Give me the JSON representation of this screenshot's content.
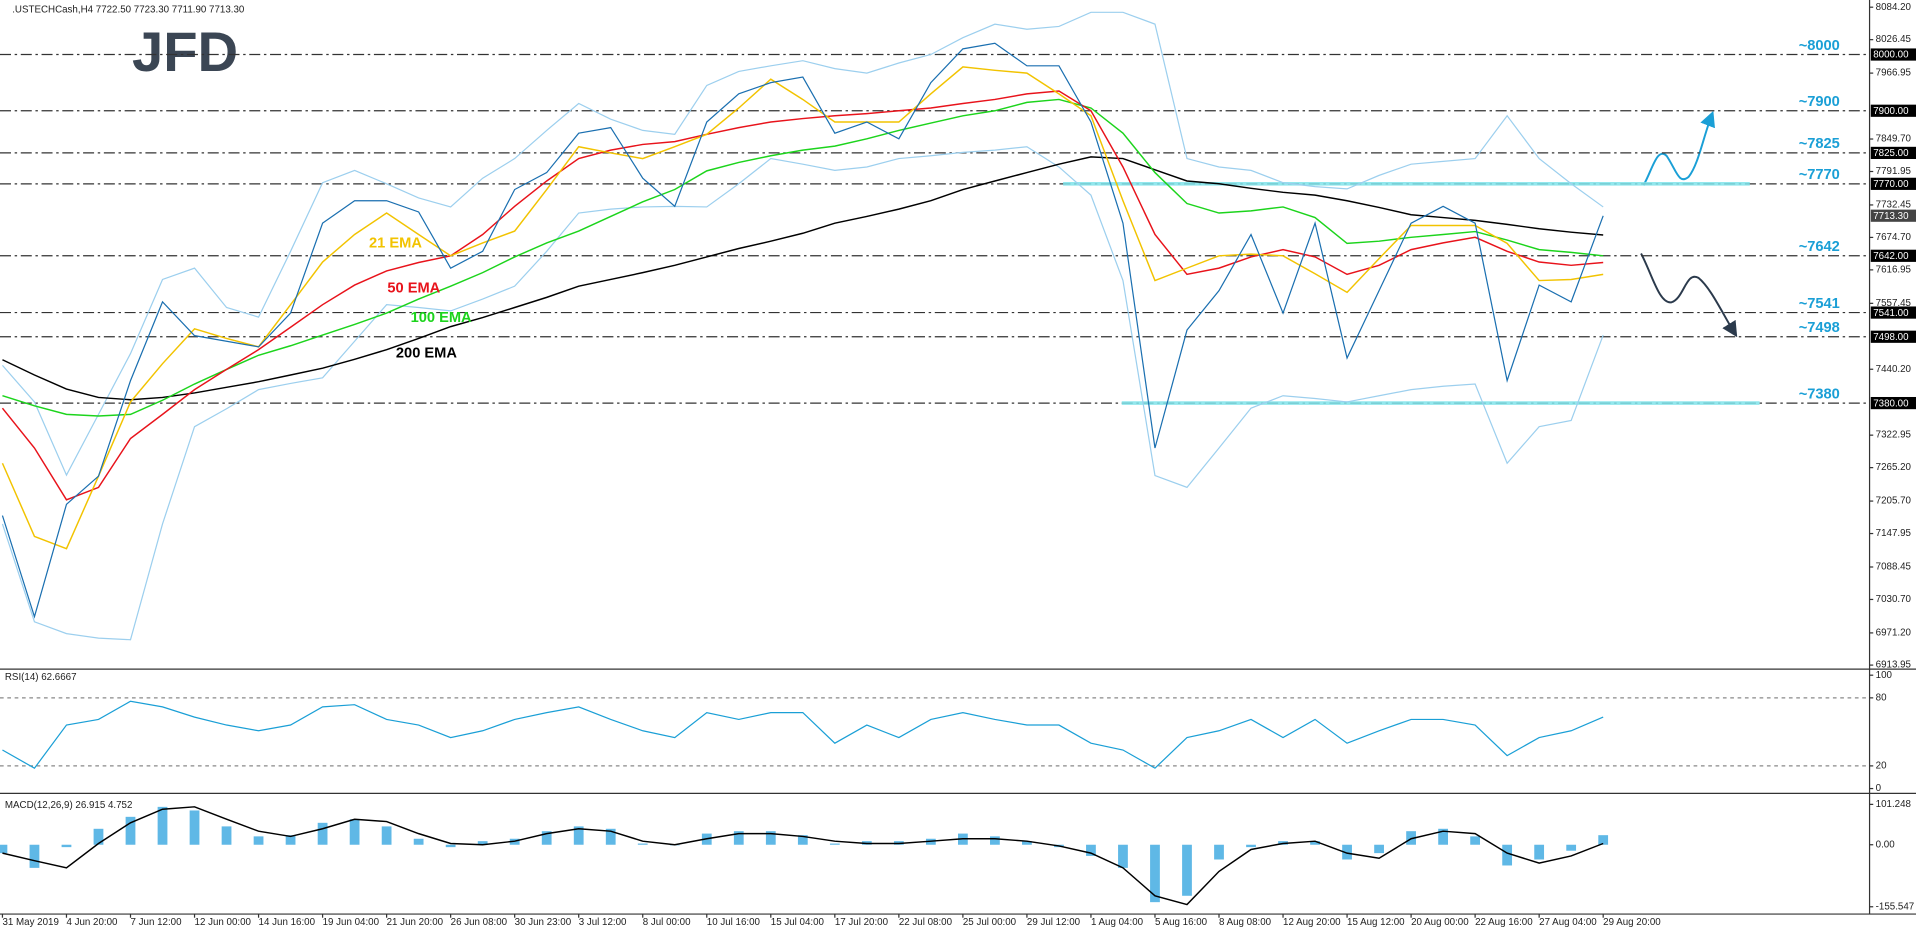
{
  "logo": "JFD",
  "chart_data": [
    {
      "type": "line",
      "title": ".USTECHCash,H4  7722.50 7723.30 7711.90 7713.30",
      "ylim": [
        6909,
        8097
      ],
      "yticks": [
        {
          "value": 8084.2,
          "label": "8084.20"
        },
        {
          "value": 8026.45,
          "label": "8026.45"
        },
        {
          "value": 7966.95,
          "label": "7966.95"
        },
        {
          "value": 7849.7,
          "label": "7849.70"
        },
        {
          "value": 7791.95,
          "label": "7791.95"
        },
        {
          "value": 7732.45,
          "label": "7732.45"
        },
        {
          "value": 7674.7,
          "label": "7674.70"
        },
        {
          "value": 7616.95,
          "label": "7616.95"
        },
        {
          "value": 7557.45,
          "label": "7557.45"
        },
        {
          "value": 7440.2,
          "label": "7440.20"
        },
        {
          "value": 7322.95,
          "label": "7322.95"
        },
        {
          "value": 7265.2,
          "label": "7265.20"
        },
        {
          "value": 7205.7,
          "label": "7205.70"
        },
        {
          "value": 7147.95,
          "label": "7147.95"
        },
        {
          "value": 7088.45,
          "label": "7088.45"
        },
        {
          "value": 7030.7,
          "label": "7030.70"
        },
        {
          "value": 6971.2,
          "label": "6971.20"
        },
        {
          "value": 6913.95,
          "label": "6913.95"
        }
      ],
      "levels": [
        {
          "value": 8000,
          "label": "~8000",
          "axis_label": "8000.00"
        },
        {
          "value": 7900,
          "label": "~7900",
          "axis_label": "7900.00"
        },
        {
          "value": 7825,
          "label": "~7825",
          "axis_label": "7825.00"
        },
        {
          "value": 7770,
          "label": "~7770",
          "axis_label": "7770.00"
        },
        {
          "value": 7642,
          "label": "~7642",
          "axis_label": "7642.00"
        },
        {
          "value": 7541,
          "label": "~7541",
          "axis_label": "7541.00"
        },
        {
          "value": 7498,
          "label": "~7498",
          "axis_label": "7498.00"
        },
        {
          "value": 7380,
          "label": "~7380",
          "axis_label": "7380.00"
        }
      ],
      "current_price": {
        "value": 7713.3,
        "label": "7713.30"
      },
      "series": [
        {
          "color": "#9ccfee",
          "values": [
            7447,
            7382,
            7252,
            7360,
            7468,
            7600,
            7620,
            7550,
            7533,
            7650,
            7772,
            7794,
            7770,
            7745,
            7729,
            7780,
            7815,
            7865,
            7913,
            7885,
            7865,
            7858,
            7945,
            7970,
            7980,
            7989,
            7975,
            7967,
            7985,
            8000,
            8030,
            8054,
            8045,
            8050,
            8075,
            8075,
            8054,
            7815,
            7800,
            7794,
            7772,
            7765,
            7761,
            7785,
            7805,
            7810,
            7815,
            7891,
            7815,
            7770,
            7729
          ]
        },
        {
          "color": "#9ccfee",
          "values": [
            7165,
            6991,
            6970,
            6962,
            6959,
            7165,
            7338,
            7370,
            7404,
            7415,
            7425,
            7490,
            7555,
            7550,
            7544,
            7565,
            7588,
            7650,
            7718,
            7725,
            7729,
            7730,
            7729,
            7770,
            7815,
            7805,
            7794,
            7800,
            7815,
            7820,
            7826,
            7830,
            7836,
            7800,
            7750,
            7598,
            7251,
            7230,
            7300,
            7371,
            7393,
            7388,
            7382,
            7393,
            7404,
            7410,
            7414,
            7273,
            7338,
            7349,
            7501
          ]
        },
        {
          "name": "200 EMA",
          "color": "#000000",
          "values": [
            7457,
            7430,
            7405,
            7390,
            7386,
            7390,
            7398,
            7408,
            7418,
            7430,
            7442,
            7458,
            7475,
            7495,
            7516,
            7532,
            7550,
            7568,
            7588,
            7600,
            7612,
            7625,
            7640,
            7655,
            7668,
            7682,
            7700,
            7712,
            7725,
            7740,
            7760,
            7775,
            7790,
            7805,
            7818,
            7815,
            7795,
            7775,
            7770,
            7762,
            7755,
            7750,
            7740,
            7728,
            7715,
            7710,
            7705,
            7698,
            7690,
            7684,
            7679
          ]
        },
        {
          "name": "100 EMA",
          "color": "#1cd41c",
          "values": [
            7393,
            7375,
            7360,
            7357,
            7360,
            7385,
            7414,
            7440,
            7465,
            7482,
            7501,
            7520,
            7540,
            7565,
            7588,
            7612,
            7640,
            7665,
            7686,
            7712,
            7738,
            7760,
            7793,
            7808,
            7820,
            7830,
            7837,
            7850,
            7865,
            7878,
            7891,
            7900,
            7915,
            7920,
            7905,
            7860,
            7790,
            7735,
            7718,
            7722,
            7729,
            7710,
            7664,
            7668,
            7675,
            7680,
            7685,
            7670,
            7653,
            7648,
            7642
          ]
        },
        {
          "name": "50 EMA",
          "color": "#e8131b",
          "values": [
            7371,
            7300,
            7208,
            7230,
            7317,
            7360,
            7404,
            7440,
            7475,
            7515,
            7555,
            7590,
            7615,
            7630,
            7642,
            7680,
            7730,
            7775,
            7815,
            7830,
            7840,
            7845,
            7858,
            7870,
            7880,
            7886,
            7891,
            7895,
            7900,
            7905,
            7913,
            7920,
            7930,
            7935,
            7900,
            7800,
            7680,
            7609,
            7620,
            7640,
            7653,
            7640,
            7609,
            7625,
            7653,
            7665,
            7675,
            7650,
            7631,
            7625,
            7630
          ]
        },
        {
          "name": "21 EMA",
          "color": "#f2c300",
          "values": [
            7273,
            7143,
            7121,
            7250,
            7382,
            7450,
            7512,
            7495,
            7480,
            7555,
            7631,
            7680,
            7718,
            7680,
            7642,
            7665,
            7686,
            7760,
            7836,
            7825,
            7815,
            7836,
            7858,
            7905,
            7956,
            7920,
            7880,
            7880,
            7880,
            7930,
            7978,
            7972,
            7967,
            7930,
            7891,
            7740,
            7598,
            7620,
            7642,
            7645,
            7642,
            7610,
            7577,
            7637,
            7696,
            7696,
            7696,
            7664,
            7598,
            7600,
            7609
          ]
        },
        {
          "color": "#1a6fb0",
          "values": [
            7180,
            7000,
            7200,
            7250,
            7420,
            7560,
            7500,
            7490,
            7480,
            7540,
            7700,
            7740,
            7740,
            7720,
            7620,
            7650,
            7760,
            7790,
            7860,
            7870,
            7780,
            7730,
            7880,
            7930,
            7950,
            7960,
            7860,
            7880,
            7850,
            7950,
            8010,
            8020,
            7980,
            7980,
            7880,
            7700,
            7300,
            7510,
            7580,
            7680,
            7540,
            7700,
            7460,
            7580,
            7700,
            7730,
            7700,
            7420,
            7590,
            7560,
            7713
          ]
        }
      ]
    },
    {
      "type": "line",
      "title": "RSI(14) 62.6667",
      "ylim": [
        -3.2,
        104.3
      ],
      "yticks": [
        100,
        80,
        20,
        0
      ],
      "series": [
        {
          "color": "#1a9fd6",
          "values": [
            34,
            18,
            56,
            61,
            77,
            72,
            63,
            56,
            51,
            56,
            72,
            74,
            61,
            56,
            45,
            51,
            61,
            67,
            72,
            61,
            51,
            45,
            67,
            61,
            67,
            67,
            40,
            56,
            45,
            61,
            67,
            61,
            56,
            56,
            40,
            34,
            18,
            45,
            51,
            61,
            45,
            61,
            40,
            51,
            61,
            61,
            56,
            29,
            45,
            51,
            63
          ]
        }
      ]
    },
    {
      "type": "combo",
      "title": "MACD(12,26,9) 26.915 4.752",
      "ylim": [
        -170.8,
        125.7
      ],
      "yticks": [
        {
          "value": 101.248,
          "label": "101.248"
        },
        {
          "value": 0,
          "label": "0.00"
        },
        {
          "value": -155.547,
          "label": "-155.547"
        }
      ],
      "categories": [
        "31 May 2019",
        null,
        "4 Jun 20:00",
        null,
        "7 Jun 12:00",
        null,
        "12 Jun 00:00",
        null,
        "14 Jun 16:00",
        null,
        "19 Jun 04:00",
        null,
        "21 Jun 20:00",
        null,
        "26 Jun 08:00",
        null,
        "30 Jun 23:00",
        null,
        "3 Jul 12:00",
        null,
        "8 Jul 00:00",
        null,
        "10 Jul 16:00",
        null,
        "15 Jul 04:00",
        null,
        "17 Jul 20:00",
        null,
        "22 Jul 08:00",
        null,
        "25 Jul 00:00",
        null,
        "29 Jul 12:00",
        null,
        "1 Aug 04:00",
        null,
        "5 Aug 16:00",
        null,
        "8 Aug 08:00",
        null,
        "12 Aug 20:00",
        null,
        "15 Aug 12:00",
        null,
        "20 Aug 00:00",
        null,
        "22 Aug 16:00",
        null,
        "27 Aug 04:00",
        null,
        "29 Aug 20:00"
      ],
      "series": [
        {
          "type": "bar",
          "color": "#5fb8e6",
          "values": [
            -21,
            -58,
            -6,
            40,
            70,
            95,
            86,
            46,
            21,
            24,
            55,
            64,
            46,
            15,
            -6,
            9,
            15,
            34,
            46,
            40,
            3,
            0,
            28,
            34,
            34,
            24,
            3,
            9,
            9,
            15,
            28,
            21,
            9,
            -6,
            -28,
            -58,
            -144,
            -128,
            -37,
            -6,
            9,
            9,
            -37,
            -21,
            34,
            40,
            21,
            -52,
            -37,
            -15,
            24
          ]
        },
        {
          "type": "line",
          "color": "#000000",
          "values": [
            -21,
            -40,
            -58,
            3,
            55,
            89,
            95,
            64,
            34,
            21,
            40,
            64,
            58,
            28,
            3,
            0,
            9,
            28,
            40,
            34,
            9,
            0,
            15,
            28,
            28,
            21,
            9,
            3,
            3,
            9,
            15,
            15,
            9,
            -3,
            -21,
            -58,
            -128,
            -150,
            -67,
            -12,
            3,
            9,
            -21,
            -34,
            15,
            34,
            28,
            -21,
            -46,
            -28,
            3
          ]
        }
      ]
    }
  ]
}
